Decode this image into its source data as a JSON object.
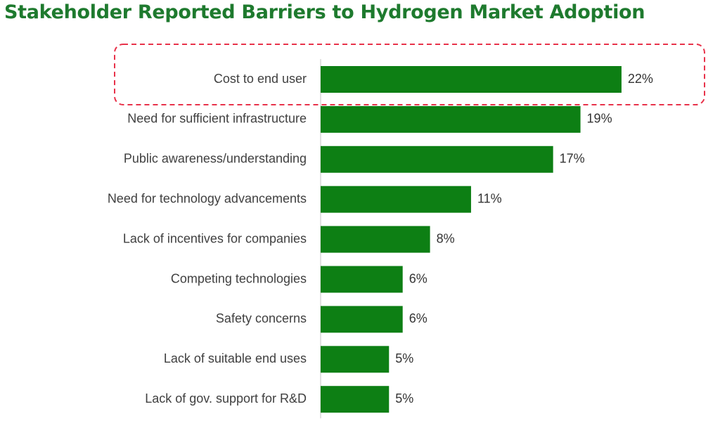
{
  "chart_data": {
    "type": "bar",
    "orientation": "horizontal",
    "title": "Stakeholder Reported Barriers to Hydrogen Market Adoption",
    "categories": [
      "Cost to end user",
      "Need for sufficient infrastructure",
      "Public awareness/understanding",
      "Need for technology advancements",
      "Lack of incentives for companies",
      "Competing technologies",
      "Safety concerns",
      "Lack of suitable end uses",
      "Lack of gov. support for R&D"
    ],
    "values": [
      22,
      19,
      17,
      11,
      8,
      6,
      6,
      5,
      5
    ],
    "value_labels": [
      "22%",
      "19%",
      "17%",
      "11%",
      "8%",
      "6%",
      "6%",
      "5%",
      "5%"
    ],
    "unit": "%",
    "highlighted_category": "Cost to end user",
    "colors": {
      "bar": "#0d7f14",
      "title": "#1e7a2e",
      "highlight_border": "#e8324a",
      "label_text": "#404040"
    },
    "grid": false,
    "legend": "none"
  }
}
